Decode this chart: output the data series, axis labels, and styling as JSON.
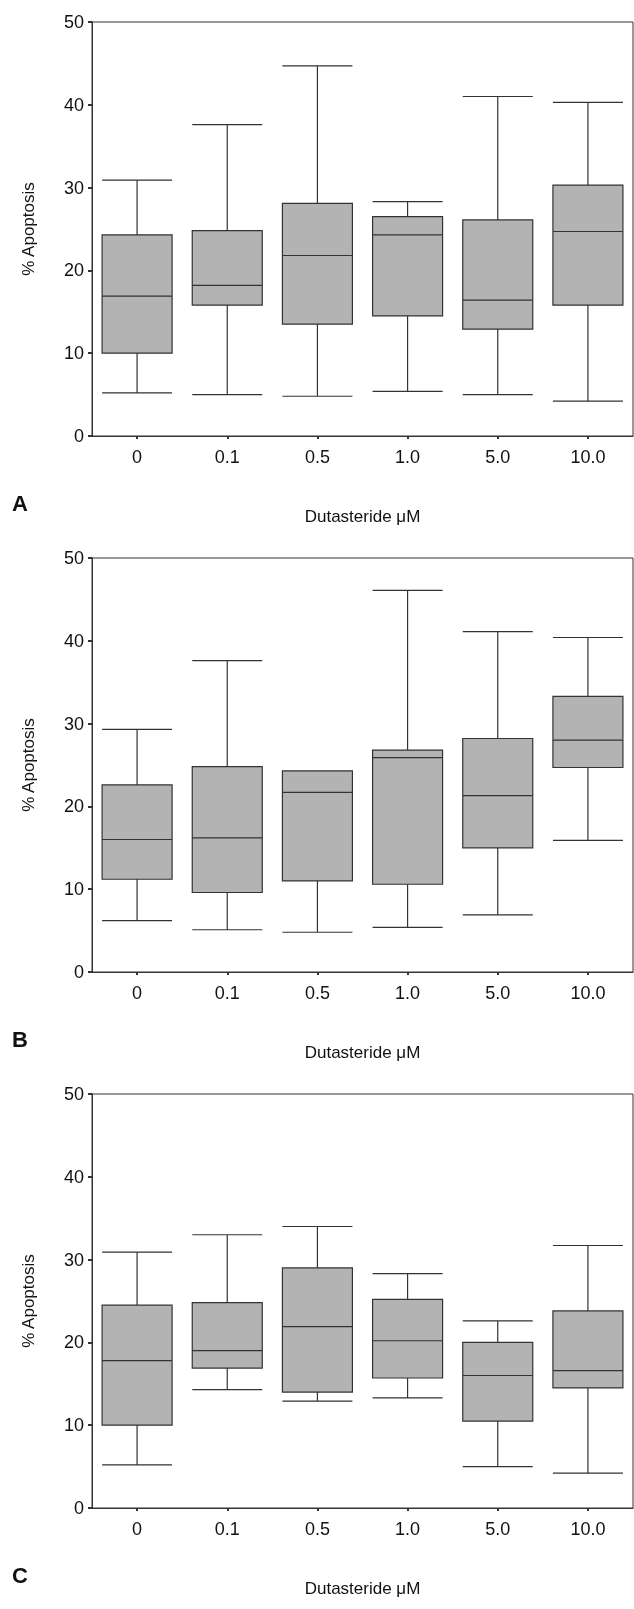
{
  "chart_data": [
    {
      "type": "box",
      "xlabel": "Dutasteride μM",
      "ylabel": "% Apoptosis",
      "annotations": [
        "A"
      ],
      "categories": [
        "0",
        "0.1",
        "0.5",
        "1.0",
        "5.0",
        "10.0"
      ],
      "ylim": [
        0,
        50
      ],
      "yticks": [
        0,
        10,
        20,
        30,
        40,
        50
      ],
      "grid": false,
      "color": "#b3b3b3",
      "boxes": [
        {
          "low": 5.2,
          "q1": 10.0,
          "median": 16.9,
          "q3": 24.3,
          "high": 30.9
        },
        {
          "low": 5.0,
          "q1": 15.8,
          "median": 18.2,
          "q3": 24.8,
          "high": 37.6
        },
        {
          "low": 4.8,
          "q1": 13.5,
          "median": 21.8,
          "q3": 28.1,
          "high": 44.7
        },
        {
          "low": 5.4,
          "q1": 14.5,
          "median": 24.3,
          "q3": 26.5,
          "high": 28.3
        },
        {
          "low": 5.0,
          "q1": 12.9,
          "median": 16.4,
          "q3": 26.1,
          "high": 41.0
        },
        {
          "low": 4.2,
          "q1": 15.8,
          "median": 24.7,
          "q3": 30.3,
          "high": 40.3
        }
      ]
    },
    {
      "type": "box",
      "xlabel": "Dutasteride μM",
      "ylabel": "% Apoptosis",
      "annotations": [
        "B"
      ],
      "categories": [
        "0",
        "0.1",
        "0.5",
        "1.0",
        "5.0",
        "10.0"
      ],
      "ylim": [
        0,
        50
      ],
      "yticks": [
        0,
        10,
        20,
        30,
        40,
        50
      ],
      "grid": false,
      "color": "#b3b3b3",
      "boxes": [
        {
          "low": 6.2,
          "q1": 11.2,
          "median": 16.0,
          "q3": 22.6,
          "high": 29.3
        },
        {
          "low": 5.1,
          "q1": 9.6,
          "median": 16.2,
          "q3": 24.8,
          "high": 37.6
        },
        {
          "low": 4.8,
          "q1": 11.0,
          "median": 21.7,
          "q3": 24.3,
          "high": 24.3
        },
        {
          "low": 5.4,
          "q1": 10.6,
          "median": 25.9,
          "q3": 26.8,
          "high": 46.1
        },
        {
          "low": 6.9,
          "q1": 15.0,
          "median": 21.3,
          "q3": 28.2,
          "high": 41.1
        },
        {
          "low": 15.9,
          "q1": 24.7,
          "median": 28.0,
          "q3": 33.3,
          "high": 40.4
        }
      ]
    },
    {
      "type": "box",
      "xlabel": "Dutasteride μM",
      "ylabel": "% Apoptosis",
      "annotations": [
        "C"
      ],
      "categories": [
        "0",
        "0.1",
        "0.5",
        "1.0",
        "5.0",
        "10.0"
      ],
      "ylim": [
        0,
        50
      ],
      "yticks": [
        0,
        10,
        20,
        30,
        40,
        50
      ],
      "grid": false,
      "color": "#b3b3b3",
      "boxes": [
        {
          "low": 5.2,
          "q1": 10.0,
          "median": 17.8,
          "q3": 24.5,
          "high": 30.9
        },
        {
          "low": 14.3,
          "q1": 16.9,
          "median": 19.0,
          "q3": 24.8,
          "high": 33.0
        },
        {
          "low": 12.9,
          "q1": 14.0,
          "median": 21.9,
          "q3": 29.0,
          "high": 34.0
        },
        {
          "low": 13.3,
          "q1": 15.7,
          "median": 20.2,
          "q3": 25.2,
          "high": 28.3
        },
        {
          "low": 5.0,
          "q1": 10.5,
          "median": 16.0,
          "q3": 20.0,
          "high": 22.6
        },
        {
          "low": 4.2,
          "q1": 14.5,
          "median": 16.6,
          "q3": 23.8,
          "high": 31.7
        }
      ]
    }
  ]
}
